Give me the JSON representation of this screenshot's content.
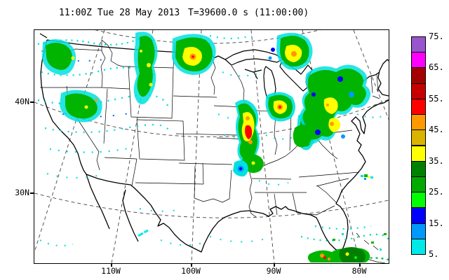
{
  "title": {
    "left": "11:00Z Tue 28 May 2013",
    "right": "T=39600.0 s (11:00:00)"
  },
  "axes": {
    "lat_labels": [
      "40N",
      "30N"
    ],
    "lon_labels": [
      "110W",
      "100W",
      "90W",
      "80W"
    ]
  },
  "colorbar": {
    "labels_top_to_bottom": [
      "75.",
      "65.",
      "55.",
      "45.",
      "35.",
      "25.",
      "15.",
      "5."
    ],
    "colors_top_to_bottom": [
      "#9955CC",
      "#FF00FF",
      "#A30000",
      "#C60000",
      "#FF0000",
      "#FF9900",
      "#D9B300",
      "#FFFF00",
      "#008000",
      "#00AA00",
      "#00FF00",
      "#0000FF",
      "#0099FF",
      "#00E8E8"
    ],
    "value_min": 5,
    "value_max": 75,
    "step": 5
  },
  "map": {
    "region": "Continental United States",
    "grid_lines": "dashed latitude/longitude every 10 degrees",
    "coastline_color": "#000000",
    "background": "#ffffff"
  },
  "radar_regions": [
    {
      "name": "pacific-northwest-scatter",
      "area": "WA/OR/ID/MT",
      "max_level": 50
    },
    {
      "name": "northern-minnesota-cell",
      "area": "northern MN",
      "max_level": 50
    },
    {
      "name": "northern-lake-huron-cell",
      "area": "Lake Huron / Ontario border",
      "max_level": 50
    },
    {
      "name": "midwest-convective-line",
      "area": "IA/MO/IL",
      "max_level": 60
    },
    {
      "name": "chicago-area-cell",
      "area": "southern Lake Michigan",
      "max_level": 60
    },
    {
      "name": "ohio-valley-band",
      "area": "OH / Lake Erie",
      "max_level": 50
    },
    {
      "name": "northeast-system",
      "area": "Lakes Erie-Ontario / PA / NY",
      "max_level": 50
    },
    {
      "name": "arkansas-missouri-cell",
      "area": "AR/MO border",
      "max_level": 20
    },
    {
      "name": "offshore-carolinas-speck",
      "area": "Atlantic off SC",
      "max_level": 45
    },
    {
      "name": "florida-caribbean-band",
      "area": "south of FL / Cuba / Bahamas",
      "max_level": 55
    }
  ]
}
